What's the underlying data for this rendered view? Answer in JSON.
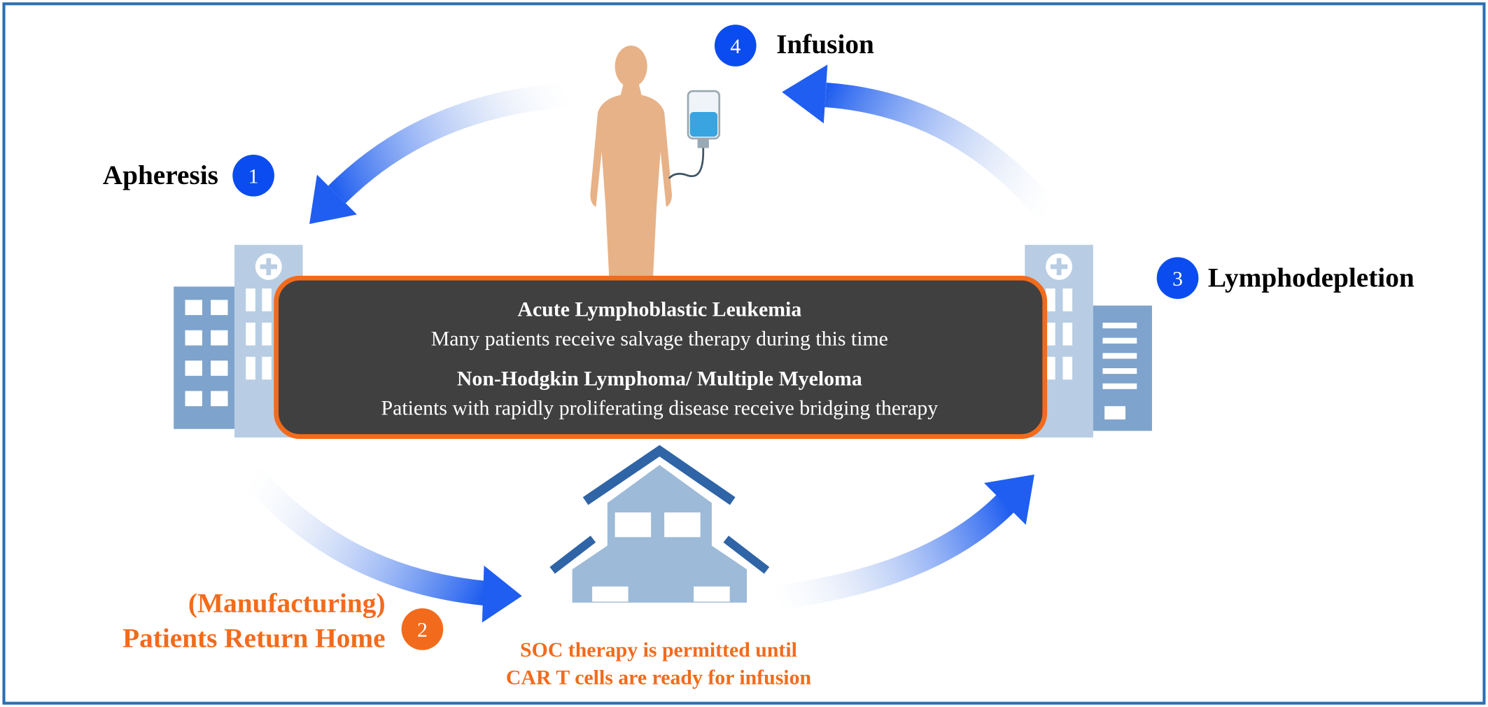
{
  "steps": [
    {
      "number": "1",
      "label": "Apheresis"
    },
    {
      "number": "2",
      "label": [
        "(Manufacturing)",
        "Patients Return Home"
      ]
    },
    {
      "number": "3",
      "label": "Lymphodepletion"
    },
    {
      "number": "4",
      "label": "Infusion"
    }
  ],
  "center_box": {
    "sections": [
      {
        "title": "Acute Lymphoblastic Leukemia",
        "text": "Many patients receive salvage therapy during this time"
      },
      {
        "title": "Non-Hodgkin Lymphoma/ Multiple Myeloma",
        "text": "Patients with rapidly proliferating disease receive bridging therapy"
      }
    ]
  },
  "home_caption": [
    "SOC therapy is permitted until",
    "CAR T cells are ready for infusion"
  ]
}
